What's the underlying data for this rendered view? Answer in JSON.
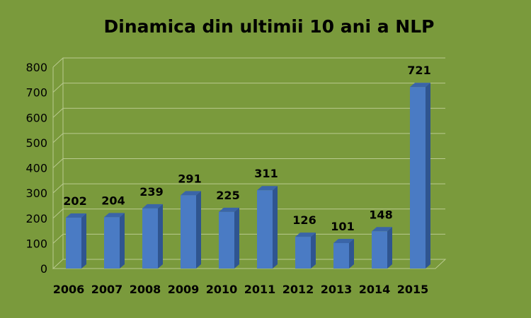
{
  "chart_data": {
    "type": "bar",
    "title": "Dinamica din ultimii 10 ani a NLP",
    "categories": [
      "2006",
      "2007",
      "2008",
      "2009",
      "2010",
      "2011",
      "2012",
      "2013",
      "2014",
      "2015"
    ],
    "values": [
      202,
      204,
      239,
      291,
      225,
      311,
      126,
      101,
      148,
      721
    ],
    "data_labels": [
      "202",
      "204",
      "239",
      "291",
      "225",
      "311",
      "126",
      "101",
      "148",
      "721"
    ],
    "y_ticks": [
      "0",
      "100",
      "200",
      "300",
      "400",
      "500",
      "600",
      "700",
      "800"
    ],
    "ylim": [
      0,
      800
    ],
    "grid": true,
    "legend": "none",
    "colors": {
      "background": "#7a9a3c",
      "bar_front": "#4a7bc4",
      "bar_side": "#2f5590",
      "bar_top": "#3a65a8",
      "grid": "#b9c98f"
    }
  }
}
